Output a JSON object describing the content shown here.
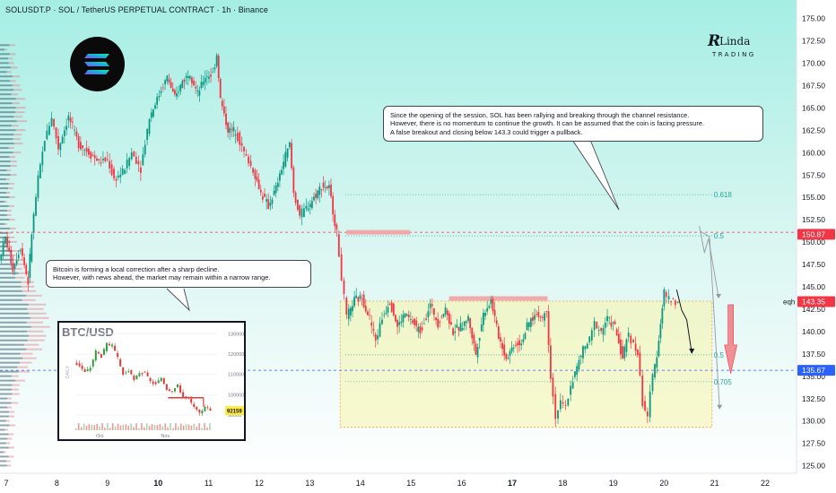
{
  "window_title": "SOLUSDT.P · SOL / TetherUS PERPETUAL CONTRACT · 1h · Binance",
  "brand": {
    "r": "R",
    "linda": "Linda",
    "trading": "TRADING"
  },
  "callouts": {
    "top_right": [
      "Since the opening of the session, SOL has been rallying and breaking through the channel resistance.",
      "However, there is no momentum to continue the growth. It can be assumed that the coin is facing pressure.",
      "A false breakout and closing below 143.3 could trigger a pullback."
    ],
    "left": [
      "Bitcoin is forming a local correction after a sharp decline.",
      "However, with news ahead, the market may remain within a narrow range."
    ]
  },
  "chart_data": {
    "type": "candlestick",
    "ylim": [
      124,
      177
    ],
    "price_ticks": [
      "175.00",
      "172.50",
      "170.00",
      "167.50",
      "165.00",
      "162.50",
      "160.00",
      "157.50",
      "155.00",
      "152.50",
      "150.00",
      "147.50",
      "145.00",
      "142.50",
      "140.00",
      "137.50",
      "135.00",
      "132.50",
      "130.00",
      "127.50",
      "125.00"
    ],
    "x_ticks": [
      {
        "day": 7,
        "label": "7",
        "bold": false
      },
      {
        "day": 8,
        "label": "8",
        "bold": false
      },
      {
        "day": 9,
        "label": "9",
        "bold": false
      },
      {
        "day": 10,
        "label": "10",
        "bold": true
      },
      {
        "day": 11,
        "label": "11",
        "bold": false
      },
      {
        "day": 12,
        "label": "12",
        "bold": false
      },
      {
        "day": 13,
        "label": "13",
        "bold": false
      },
      {
        "day": 14,
        "label": "14",
        "bold": false
      },
      {
        "day": 15,
        "label": "15",
        "bold": false
      },
      {
        "day": 16,
        "label": "16",
        "bold": false
      },
      {
        "day": 17,
        "label": "17",
        "bold": true
      },
      {
        "day": 18,
        "label": "18",
        "bold": false
      },
      {
        "day": 19,
        "label": "19",
        "bold": false
      },
      {
        "day": 20,
        "label": "20",
        "bold": false
      },
      {
        "day": 21,
        "label": "21",
        "bold": false
      },
      {
        "day": 22,
        "label": "22",
        "bold": false
      }
    ],
    "price_labels": [
      {
        "value": 150.87,
        "label": "150.87",
        "color": "#f23645"
      },
      {
        "value": 143.35,
        "label": "143.35",
        "color": "#f23645"
      },
      {
        "value": 135.67,
        "label": "135.67",
        "color": "#2962ff"
      }
    ],
    "fib_levels": [
      {
        "value": 155.3,
        "label": "0.618",
        "color": "#26a69a"
      },
      {
        "value": 150.7,
        "label": "0.5",
        "color": "#26a69a"
      },
      {
        "value": 137.4,
        "label": "0.5",
        "color": "#26a69a"
      },
      {
        "value": 134.4,
        "label": "0.705",
        "color": "#26a69a"
      }
    ],
    "levels": [
      {
        "value": 151.1,
        "style": "red-dashed"
      },
      {
        "value": 135.67,
        "style": "blue-dashed"
      }
    ],
    "eqh": {
      "label": "eqh",
      "value": 143.35
    },
    "range_box": {
      "day_start": 13.6,
      "day_end": 20.95,
      "high": 143.4,
      "low": 129.3
    },
    "resistance_marks": [
      {
        "day_start": 13.72,
        "day_end": 14.98,
        "value": 151.1
      },
      {
        "day_start": 15.75,
        "day_end": 17.7,
        "value": 143.7
      }
    ],
    "path": [
      [
        6.88,
        148
      ],
      [
        7.0,
        150.5
      ],
      [
        7.15,
        147
      ],
      [
        7.3,
        149.5
      ],
      [
        7.45,
        145.5
      ],
      [
        7.52,
        151
      ],
      [
        7.65,
        157
      ],
      [
        7.78,
        161.5
      ],
      [
        7.92,
        164
      ],
      [
        8.05,
        160.5
      ],
      [
        8.25,
        164
      ],
      [
        8.45,
        161
      ],
      [
        8.65,
        160
      ],
      [
        8.85,
        159
      ],
      [
        9.02,
        159.2
      ],
      [
        9.15,
        157
      ],
      [
        9.32,
        157.8
      ],
      [
        9.5,
        160
      ],
      [
        9.68,
        158.3
      ],
      [
        9.85,
        164
      ],
      [
        10.0,
        166
      ],
      [
        10.2,
        168.5
      ],
      [
        10.35,
        166
      ],
      [
        10.5,
        168
      ],
      [
        10.65,
        169
      ],
      [
        10.8,
        166.5
      ],
      [
        10.95,
        168.5
      ],
      [
        11.1,
        168.8
      ],
      [
        11.18,
        171
      ],
      [
        11.25,
        166
      ],
      [
        11.4,
        162.5
      ],
      [
        11.55,
        162.5
      ],
      [
        11.72,
        160
      ],
      [
        11.9,
        158
      ],
      [
        12.05,
        155.5
      ],
      [
        12.2,
        154
      ],
      [
        12.35,
        156
      ],
      [
        12.5,
        159
      ],
      [
        12.62,
        161
      ],
      [
        12.7,
        155.5
      ],
      [
        12.82,
        153
      ],
      [
        12.95,
        153.8
      ],
      [
        13.1,
        155
      ],
      [
        13.25,
        156.3
      ],
      [
        13.4,
        156
      ],
      [
        13.55,
        151
      ],
      [
        13.65,
        146
      ],
      [
        13.75,
        141.5
      ],
      [
        13.9,
        143.5
      ],
      [
        14.05,
        143.8
      ],
      [
        14.2,
        141.5
      ],
      [
        14.32,
        139
      ],
      [
        14.45,
        141.5
      ],
      [
        14.6,
        143.5
      ],
      [
        14.75,
        140.5
      ],
      [
        14.9,
        142
      ],
      [
        15.05,
        141
      ],
      [
        15.2,
        140
      ],
      [
        15.4,
        143
      ],
      [
        15.55,
        141
      ],
      [
        15.7,
        142.5
      ],
      [
        15.85,
        140
      ],
      [
        16.0,
        140.5
      ],
      [
        16.15,
        141.5
      ],
      [
        16.3,
        137.5
      ],
      [
        16.45,
        142
      ],
      [
        16.6,
        143.5
      ],
      [
        16.75,
        139.5
      ],
      [
        16.9,
        137
      ],
      [
        17.05,
        138.5
      ],
      [
        17.2,
        138.8
      ],
      [
        17.35,
        141
      ],
      [
        17.5,
        142
      ],
      [
        17.62,
        141.5
      ],
      [
        17.7,
        142.5
      ],
      [
        17.78,
        135
      ],
      [
        17.88,
        130.5
      ],
      [
        17.98,
        132
      ],
      [
        18.08,
        131.5
      ],
      [
        18.18,
        134
      ],
      [
        18.3,
        136
      ],
      [
        18.42,
        138
      ],
      [
        18.55,
        139
      ],
      [
        18.65,
        141
      ],
      [
        18.78,
        140
      ],
      [
        18.9,
        141.5
      ],
      [
        19.05,
        140.5
      ],
      [
        19.2,
        137
      ],
      [
        19.32,
        140
      ],
      [
        19.42,
        138.5
      ],
      [
        19.5,
        137.5
      ],
      [
        19.6,
        132
      ],
      [
        19.7,
        130.6
      ],
      [
        19.8,
        135
      ],
      [
        19.88,
        137.5
      ],
      [
        19.95,
        141
      ],
      [
        20.02,
        144.5
      ],
      [
        20.12,
        143.5
      ],
      [
        20.2,
        143.5
      ],
      [
        20.3,
        143.2
      ]
    ],
    "projection": [
      [
        20.25,
        144.7
      ],
      [
        20.35,
        142.4
      ],
      [
        20.45,
        141.3
      ],
      [
        20.55,
        137.6
      ]
    ]
  },
  "inset": {
    "title": "BTC/USD",
    "side_label": "DAILY",
    "y_ticks": [
      "130000",
      "120000",
      "110000",
      "100000",
      "90000"
    ],
    "x_labels": [
      "Oct",
      "Nov"
    ],
    "price_badge": "92159",
    "ylim": [
      86000,
      132000
    ],
    "path": [
      [
        0,
        116000
      ],
      [
        1,
        114500
      ],
      [
        2,
        111000
      ],
      [
        3,
        113500
      ],
      [
        4,
        121500
      ],
      [
        5,
        119000
      ],
      [
        6,
        125000
      ],
      [
        7,
        124000
      ],
      [
        8,
        118000
      ],
      [
        9,
        110000
      ],
      [
        10,
        112000
      ],
      [
        11,
        107000
      ],
      [
        12,
        111000
      ],
      [
        13,
        110500
      ],
      [
        14,
        106500
      ],
      [
        15,
        105000
      ],
      [
        16,
        108500
      ],
      [
        17,
        103000
      ],
      [
        18,
        102000
      ],
      [
        19,
        104500
      ],
      [
        20,
        99000
      ],
      [
        21,
        98000
      ],
      [
        22,
        93500
      ],
      [
        23,
        90500
      ],
      [
        24,
        94500
      ],
      [
        25,
        92159
      ]
    ],
    "resistance": 98500
  }
}
